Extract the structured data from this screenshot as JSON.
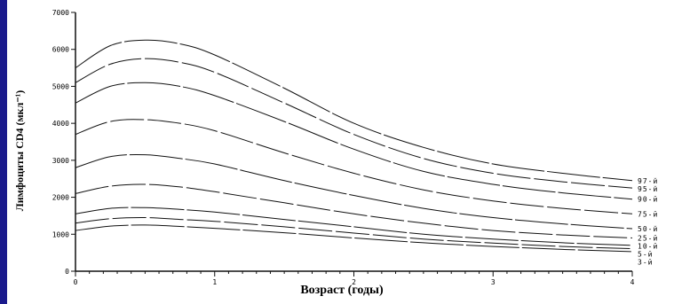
{
  "colors": {
    "frame": "#1a1a8c",
    "line": "#111111",
    "background": "#ffffff"
  },
  "chart_data": {
    "type": "line",
    "title": "",
    "xlabel": "Возраст (годы)",
    "ylabel": "Лимфоциты CD4 (мкл⁻¹)",
    "xlim": [
      0,
      4
    ],
    "ylim": [
      0,
      7000
    ],
    "xticks": [
      0,
      1,
      2,
      3,
      4
    ],
    "xtick_labels": [
      "0",
      "1",
      "2",
      "3",
      "4"
    ],
    "yticks": [
      0,
      1000,
      2000,
      3000,
      4000,
      5000,
      6000,
      7000
    ],
    "ytick_labels": [
      "0",
      "1000",
      "2000",
      "3000",
      "4000",
      "5000",
      "6000",
      "7000"
    ],
    "grid": false,
    "x": [
      0,
      0.25,
      0.5,
      0.75,
      1,
      1.5,
      2,
      2.5,
      3,
      3.5,
      4
    ],
    "series": [
      {
        "name": "97-й",
        "values": [
          5500,
          6100,
          6250,
          6150,
          5850,
          4950,
          4000,
          3350,
          2900,
          2650,
          2450
        ]
      },
      {
        "name": "95-й",
        "values": [
          5100,
          5600,
          5750,
          5650,
          5380,
          4550,
          3700,
          3050,
          2650,
          2420,
          2250
        ]
      },
      {
        "name": "90-й",
        "values": [
          4550,
          5000,
          5100,
          5000,
          4750,
          4050,
          3300,
          2700,
          2350,
          2120,
          1950
        ]
      },
      {
        "name": "75-й",
        "values": [
          3700,
          4050,
          4100,
          4000,
          3800,
          3200,
          2650,
          2200,
          1900,
          1700,
          1550
        ]
      },
      {
        "name": "50-й",
        "values": [
          2800,
          3100,
          3150,
          3050,
          2900,
          2450,
          2050,
          1700,
          1450,
          1280,
          1150
        ]
      },
      {
        "name": "25-й",
        "values": [
          2100,
          2300,
          2350,
          2280,
          2150,
          1850,
          1550,
          1300,
          1100,
          980,
          900
        ]
      },
      {
        "name": "10-й",
        "values": [
          1550,
          1700,
          1720,
          1670,
          1600,
          1400,
          1200,
          1000,
          870,
          770,
          700
        ]
      },
      {
        "name": "5-й",
        "values": [
          1300,
          1420,
          1450,
          1400,
          1350,
          1200,
          1030,
          870,
          760,
          670,
          610
        ]
      },
      {
        "name": "3-й",
        "values": [
          1100,
          1220,
          1250,
          1210,
          1160,
          1040,
          900,
          770,
          670,
          590,
          530
        ]
      }
    ],
    "right_labels": [
      "97-й",
      "95-й",
      "90-й",
      "75-й",
      "50-й",
      "25-й",
      "10-й",
      "5-й",
      "3-й"
    ]
  }
}
